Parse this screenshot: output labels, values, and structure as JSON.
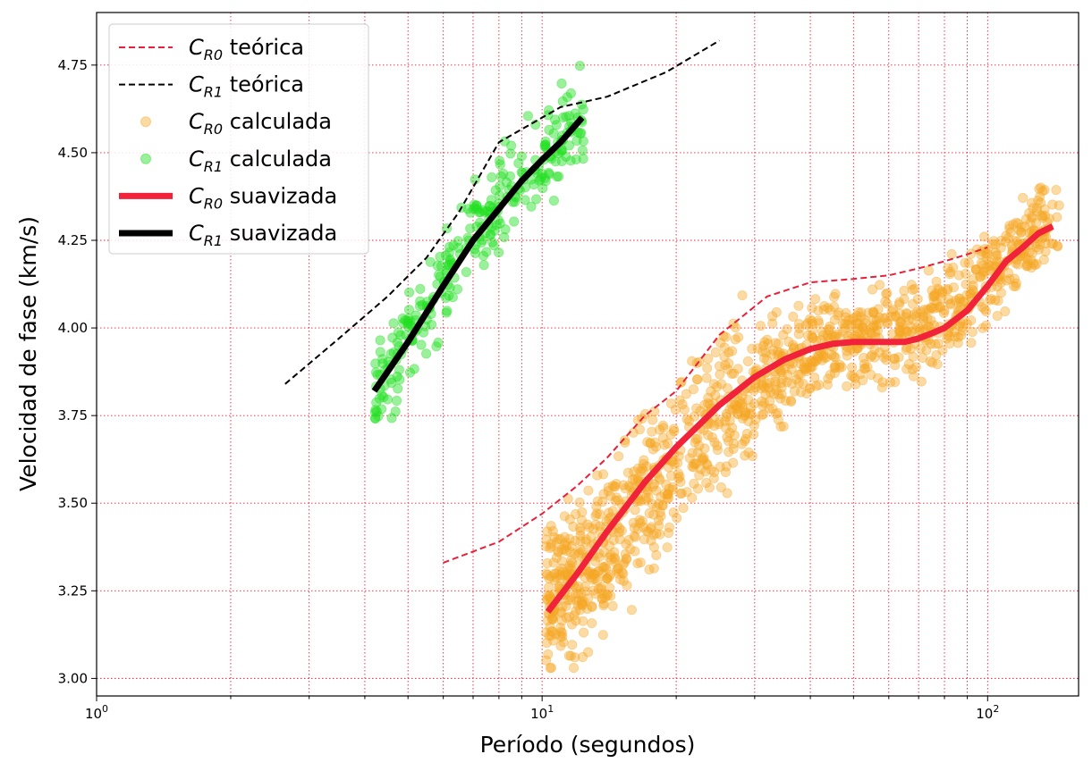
{
  "chart_data": {
    "type": "scatter",
    "title": "",
    "xlabel": "Período (segundos)",
    "ylabel": "Velocidad de fase (km/s)",
    "xscale": "log",
    "xlim": [
      1,
      160
    ],
    "ylim": [
      2.95,
      4.9
    ],
    "grid": true,
    "grid_color": "#e8203a",
    "x_ticks": [
      {
        "value": 1,
        "base": "10",
        "exp": "0"
      },
      {
        "value": 10,
        "base": "10",
        "exp": "1"
      },
      {
        "value": 100,
        "base": "10",
        "exp": "2"
      }
    ],
    "y_ticks": [
      {
        "value": 3.0,
        "label": "3.00"
      },
      {
        "value": 3.25,
        "label": "3.25"
      },
      {
        "value": 3.5,
        "label": "3.50"
      },
      {
        "value": 3.75,
        "label": "3.75"
      },
      {
        "value": 4.0,
        "label": "4.00"
      },
      {
        "value": 4.25,
        "label": "4.25"
      },
      {
        "value": 4.5,
        "label": "4.50"
      },
      {
        "value": 4.75,
        "label": "4.75"
      }
    ],
    "legend_position": "top-left",
    "series": [
      {
        "name": "C_R0 teórica",
        "sym": "C",
        "sub": "R0",
        "text": "teórica",
        "kind": "dashed-line",
        "color": "#e8203a",
        "x": [
          6,
          8,
          10,
          12,
          14,
          17,
          20,
          25,
          32,
          40,
          50,
          60,
          70,
          80,
          90,
          100
        ],
        "y": [
          3.33,
          3.39,
          3.47,
          3.55,
          3.63,
          3.75,
          3.82,
          3.98,
          4.09,
          4.13,
          4.14,
          4.15,
          4.17,
          4.19,
          4.21,
          4.23
        ]
      },
      {
        "name": "C_R1 teórica",
        "sym": "C",
        "sub": "R1",
        "text": "teórica",
        "kind": "dashed-line",
        "color": "#000000",
        "x": [
          2.65,
          3.5,
          4.5,
          5.5,
          6.5,
          8,
          11,
          14,
          19,
          25
        ],
        "y": [
          3.84,
          3.97,
          4.09,
          4.2,
          4.33,
          4.53,
          4.63,
          4.66,
          4.73,
          4.82
        ]
      },
      {
        "name": "C_R0 calculada",
        "sym": "C",
        "sub": "R0",
        "text": "calculada",
        "kind": "scatter",
        "color": "#f5a623",
        "alpha": 0.42,
        "x_range": [
          10.2,
          145
        ],
        "trend_x": [
          10.5,
          12,
          15,
          20,
          25,
          30,
          40,
          50,
          60,
          70,
          80,
          90,
          100,
          120,
          140
        ],
        "trend_y": [
          3.24,
          3.28,
          3.42,
          3.62,
          3.75,
          3.84,
          3.93,
          3.97,
          3.98,
          4.0,
          4.04,
          4.1,
          4.15,
          4.24,
          4.3
        ]
      },
      {
        "name": "C_R1 calculada",
        "sym": "C",
        "sub": "R1",
        "text": "calculada",
        "kind": "scatter",
        "color": "#22e022",
        "alpha": 0.45,
        "x_range": [
          4.2,
          12.5
        ],
        "trend_x": [
          4.2,
          5,
          6,
          7,
          8,
          9,
          10,
          11,
          12.5
        ],
        "trend_y": [
          3.82,
          3.95,
          4.12,
          4.26,
          4.36,
          4.43,
          4.5,
          4.55,
          4.6
        ]
      },
      {
        "name": "C_R0 suavizada",
        "sym": "C",
        "sub": "R0",
        "text": "suavizada",
        "kind": "thick-line",
        "color": "#f0233a",
        "x": [
          10.3,
          12,
          14,
          17,
          20,
          25,
          30,
          35,
          40,
          45,
          50,
          55,
          60,
          65,
          70,
          75,
          80,
          90,
          100,
          110,
          120,
          130,
          140
        ],
        "y": [
          3.19,
          3.3,
          3.42,
          3.56,
          3.66,
          3.78,
          3.86,
          3.91,
          3.94,
          3.955,
          3.96,
          3.96,
          3.96,
          3.96,
          3.97,
          3.985,
          4.0,
          4.05,
          4.12,
          4.19,
          4.23,
          4.27,
          4.29
        ]
      },
      {
        "name": "C_R1 suavizada",
        "sym": "C",
        "sub": "R1",
        "text": "suavizada",
        "kind": "thick-line",
        "color": "#000000",
        "x": [
          4.2,
          5,
          6,
          7,
          8,
          9,
          10,
          11,
          12.3
        ],
        "y": [
          3.82,
          3.96,
          4.12,
          4.25,
          4.34,
          4.42,
          4.48,
          4.53,
          4.6
        ]
      }
    ]
  }
}
